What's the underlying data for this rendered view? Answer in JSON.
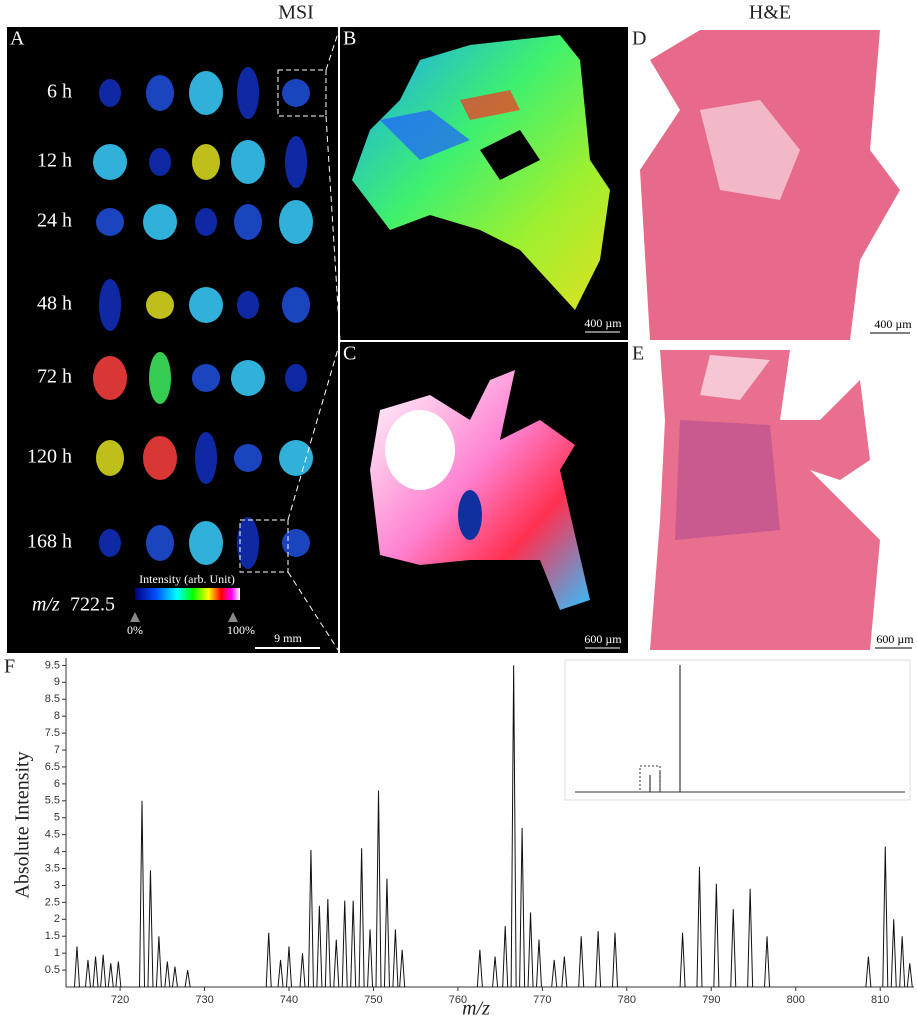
{
  "headers": {
    "msi": "MSI",
    "he": "H&E"
  },
  "panels": {
    "a": "A",
    "b": "B",
    "c": "C",
    "d": "D",
    "e": "E",
    "f": "F"
  },
  "time_points": [
    "6 h",
    "12 h",
    "24 h",
    "48 h",
    "72 h",
    "120 h",
    "168 h"
  ],
  "mz_label": "m/z",
  "mz_value": "722.5",
  "colorbar": {
    "title": "Intensity (arb. Unit)",
    "min": "0%",
    "max": "100%"
  },
  "scale_bars": {
    "a": "9 mm",
    "b": "400 µm",
    "c": "600 µm",
    "d": "400 µm",
    "e": "600 µm"
  },
  "chart_data": {
    "type": "stem",
    "xlabel": "m/z",
    "ylabel": "Absolute Intensity",
    "color": "#111",
    "x": [
      714.9,
      716.2,
      717.1,
      718.0,
      718.9,
      719.8,
      722.6,
      723.6,
      724.6,
      725.6,
      726.5,
      728.0,
      737.6,
      739.0,
      740.0,
      741.6,
      742.6,
      743.6,
      744.6,
      745.6,
      746.6,
      747.6,
      748.6,
      749.6,
      750.6,
      751.6,
      752.6,
      753.4,
      762.6,
      764.4,
      765.6,
      766.6,
      767.6,
      768.6,
      769.6,
      771.4,
      772.6,
      774.6,
      776.6,
      778.6,
      786.6,
      788.6,
      790.6,
      792.6,
      794.6,
      796.6,
      808.6,
      810.6,
      811.6,
      812.6,
      813.5
    ],
    "values": [
      1.2,
      0.8,
      0.9,
      0.95,
      0.7,
      0.75,
      5.5,
      3.45,
      1.5,
      0.75,
      0.6,
      0.5,
      1.6,
      0.8,
      1.2,
      1.0,
      4.05,
      2.4,
      2.6,
      1.4,
      2.55,
      2.55,
      4.1,
      1.7,
      5.8,
      3.2,
      1.7,
      1.1,
      1.1,
      0.9,
      1.8,
      9.5,
      4.7,
      2.2,
      1.4,
      0.8,
      0.9,
      1.5,
      1.65,
      1.6,
      1.6,
      3.55,
      3.05,
      2.3,
      2.9,
      1.5,
      0.9,
      4.15,
      2.0,
      1.5,
      0.7
    ],
    "xlim": [
      713.6,
      814
    ],
    "ylim": [
      0,
      9.6
    ],
    "xticks": [
      720,
      730,
      740,
      750,
      760,
      770,
      780,
      790,
      800,
      810
    ],
    "yticks": [
      0.5,
      1,
      1.5,
      2,
      2.5,
      3,
      3.5,
      4,
      4.5,
      5,
      5.5,
      6,
      6.5,
      7,
      7.5,
      8,
      8.5,
      9,
      9.5
    ]
  }
}
